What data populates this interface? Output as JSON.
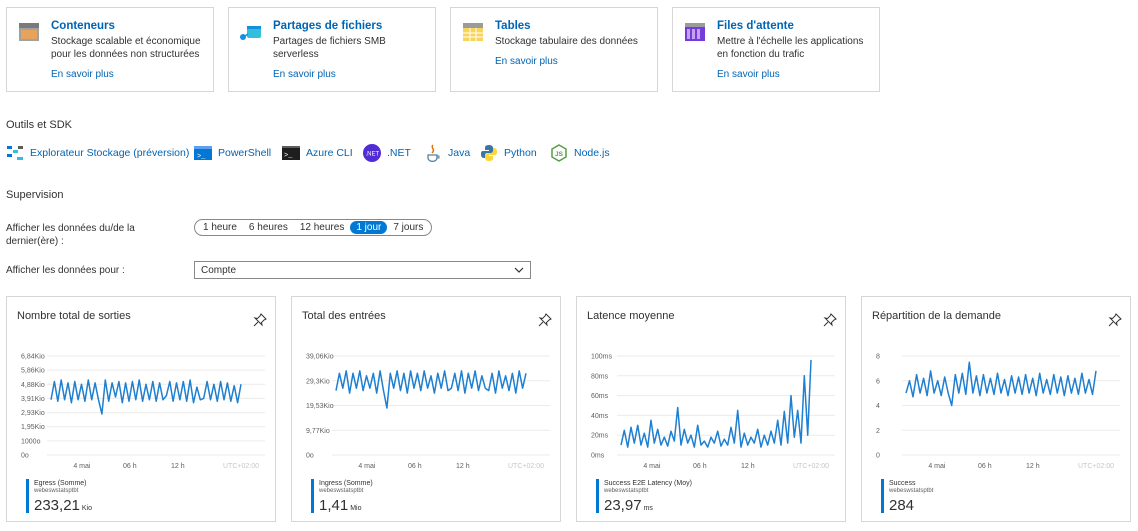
{
  "services": [
    {
      "title": "Conteneurs",
      "desc": "Stockage scalable et économique pour les données non structurées",
      "link": "En savoir plus",
      "icon": "containers-icon"
    },
    {
      "title": "Partages de fichiers",
      "desc": "Partages de fichiers SMB serverless",
      "link": "En savoir plus",
      "icon": "file-shares-icon"
    },
    {
      "title": "Tables",
      "desc": "Stockage tabulaire des données",
      "link": "En savoir plus",
      "icon": "tables-icon"
    },
    {
      "title": "Files d'attente",
      "desc": "Mettre à l'échelle les applications en fonction du trafic",
      "link": "En savoir plus",
      "icon": "queues-icon"
    }
  ],
  "tools": {
    "heading": "Outils et SDK",
    "items": [
      {
        "label": "Explorateur Stockage (préversion)",
        "icon": "storage-explorer-icon"
      },
      {
        "label": "PowerShell",
        "icon": "powershell-icon"
      },
      {
        "label": "Azure CLI",
        "icon": "azure-cli-icon"
      },
      {
        "label": ".NET",
        "icon": "dotnet-icon"
      },
      {
        "label": "Java",
        "icon": "java-icon"
      },
      {
        "label": "Python",
        "icon": "python-icon"
      },
      {
        "label": "Node.js",
        "icon": "nodejs-icon"
      }
    ]
  },
  "monitoring": {
    "heading": "Supervision",
    "time_label": "Afficher les données du/de la dernier(ère) :",
    "time_options": [
      "1 heure",
      "6 heures",
      "12 heures",
      "1 jour",
      "7 jours"
    ],
    "time_selected": "1 jour",
    "scope_label": "Afficher les données pour :",
    "scope_value": "Compte"
  },
  "colors": {
    "accent": "#0078d4",
    "link": "#0064b4",
    "series": "#1f7fd0"
  },
  "chart_data": [
    {
      "type": "line",
      "title": "Nombre total de sorties",
      "yticks": [
        "6,84Kio",
        "5,86Kio",
        "4,88Kio",
        "3,91Kio",
        "2,93Kio",
        "1,95Kio",
        "1000o",
        "0o"
      ],
      "ylim": [
        0,
        7000
      ],
      "xticks": [
        "4 mai",
        "06 h",
        "12 h"
      ],
      "timezone": "UTC+02:00",
      "series": [
        {
          "name": "Egress (Somme)",
          "resource": "webeswstatsptbt",
          "values": [
            3900,
            5200,
            3800,
            5300,
            3900,
            5100,
            3700,
            5200,
            3900,
            5000,
            3800,
            5300,
            3900,
            5100,
            3900,
            2900,
            5300,
            3800,
            5100,
            4100,
            5200,
            3700,
            5100,
            3800,
            5200,
            3900,
            5300,
            3800,
            5000,
            3900,
            5200,
            3800,
            5100,
            3900,
            4200,
            5200,
            3800,
            5100,
            3900,
            5200,
            3800,
            5300,
            3700,
            4800,
            3900,
            4000,
            5200,
            3900,
            5000,
            3800,
            5200,
            3900,
            5100,
            3800,
            4900,
            3700,
            5000
          ]
        }
      ],
      "summary": {
        "value": "233,21",
        "unit": "Kio"
      }
    },
    {
      "type": "line",
      "title": "Total des entrées",
      "yticks": [
        "39,06Kio",
        "29,3Kio",
        "19,53Kio",
        "9,77Kio",
        "0o"
      ],
      "ylim": [
        0,
        40000
      ],
      "xticks": [
        "4 mai",
        "06 h",
        "12 h"
      ],
      "timezone": "UTC+02:00",
      "series": [
        {
          "name": "Ingress (Somme)",
          "resource": "webeswstatsptbt",
          "values": [
            26000,
            33000,
            27000,
            34000,
            25000,
            33000,
            27000,
            34000,
            26000,
            32000,
            27000,
            33000,
            25000,
            34000,
            26000,
            19000,
            33000,
            27000,
            34000,
            26000,
            33000,
            25000,
            34000,
            27000,
            33000,
            26000,
            34000,
            27000,
            32000,
            25000,
            33000,
            27000,
            34000,
            26000,
            27000,
            33000,
            26000,
            34000,
            25000,
            33000,
            27000,
            34000,
            26000,
            32000,
            27000,
            26000,
            33000,
            25000,
            34000,
            27000,
            32000,
            26000,
            33000,
            25000,
            34000,
            27000,
            33000
          ]
        }
      ],
      "summary": {
        "value": "1,41",
        "unit": "Mio"
      }
    },
    {
      "type": "line",
      "title": "Latence moyenne",
      "yticks": [
        "100ms",
        "80ms",
        "60ms",
        "40ms",
        "20ms",
        "0ms"
      ],
      "ylim": [
        0,
        100
      ],
      "xticks": [
        "4 mai",
        "06 h",
        "12 h"
      ],
      "timezone": "UTC+02:00",
      "series": [
        {
          "name": "Success E2E Latency (Moy)",
          "resource": "webeswstatsptbt",
          "values": [
            10,
            25,
            8,
            28,
            12,
            30,
            10,
            22,
            8,
            35,
            12,
            26,
            10,
            18,
            9,
            24,
            14,
            48,
            10,
            26,
            12,
            20,
            8,
            30,
            10,
            14,
            8,
            18,
            12,
            24,
            9,
            16,
            10,
            28,
            12,
            45,
            8,
            22,
            10,
            18,
            12,
            26,
            8,
            20,
            10,
            24,
            12,
            35,
            10,
            44,
            12,
            60,
            18,
            45,
            12,
            80,
            20,
            96
          ]
        }
      ],
      "summary": {
        "value": "23,97",
        "unit": "ms"
      }
    },
    {
      "type": "line",
      "title": "Répartition de la demande",
      "yticks": [
        "8",
        "6",
        "4",
        "2",
        "0"
      ],
      "ylim": [
        0,
        8
      ],
      "xticks": [
        "4 mai",
        "06 h",
        "12 h"
      ],
      "timezone": "UTC+02:00",
      "series": [
        {
          "name": "Success",
          "resource": "webeswstatsptbt",
          "values": [
            5,
            6,
            4.7,
            6.5,
            5,
            6.2,
            4.8,
            6.8,
            5,
            6,
            4.8,
            6.3,
            5,
            4,
            6.5,
            5,
            6.6,
            4.9,
            7.5,
            5,
            6.4,
            4.8,
            6.5,
            5,
            6.2,
            4.9,
            6.6,
            5,
            6.1,
            4.8,
            6.4,
            5,
            6.3,
            4.9,
            6.5,
            5,
            6.2,
            4.8,
            6.6,
            5,
            6.1,
            4.9,
            6.5,
            5,
            6.3,
            4.8,
            6.4,
            5,
            6.2,
            4.9,
            6.6,
            5,
            6.1,
            4.9,
            6.8
          ]
        }
      ],
      "summary": {
        "value": "284",
        "unit": ""
      }
    }
  ]
}
